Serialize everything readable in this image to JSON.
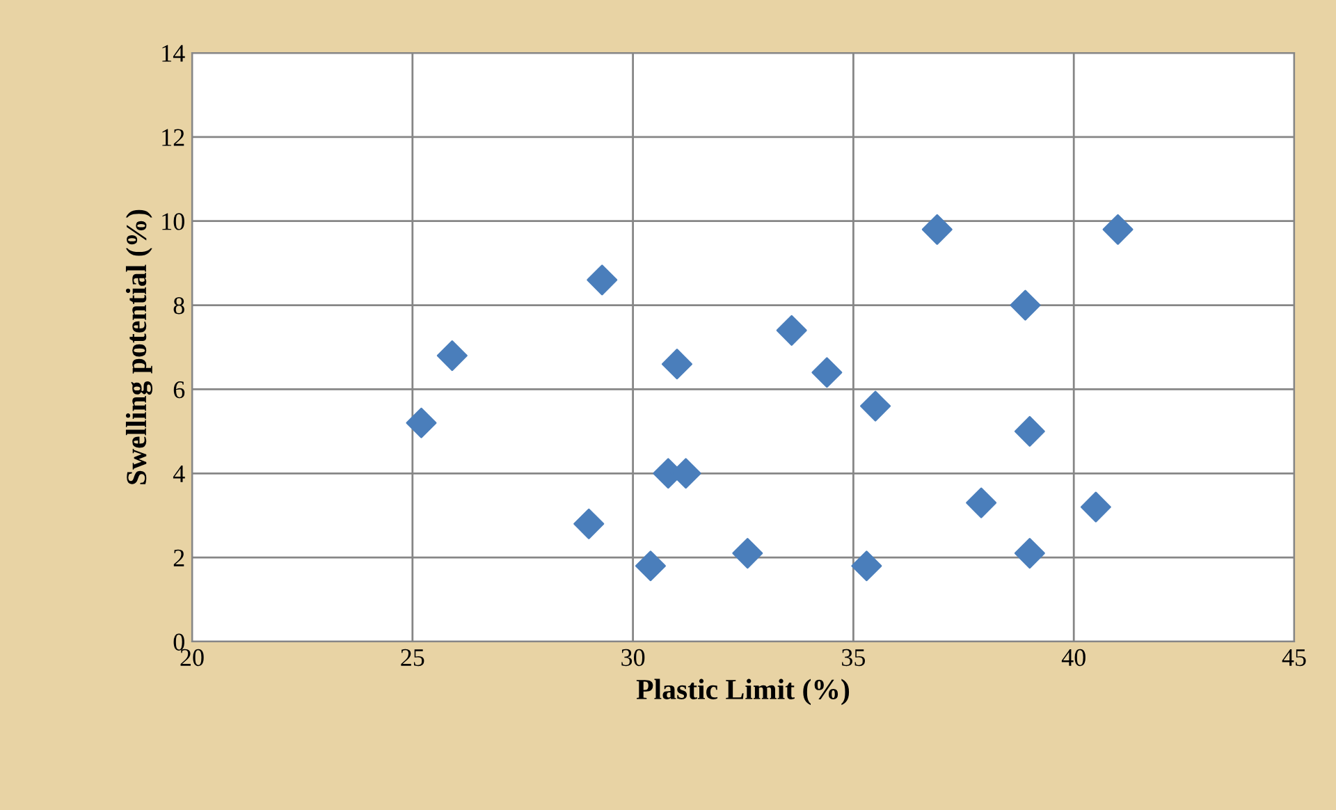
{
  "chart_data": {
    "type": "scatter",
    "xlabel": "Plastic Limit (%)",
    "ylabel": "Swelling potential (%)",
    "x": [
      25.2,
      25.9,
      29.0,
      29.3,
      30.4,
      30.8,
      31.0,
      31.2,
      32.6,
      33.6,
      34.4,
      35.5,
      35.3,
      36.9,
      37.9,
      38.9,
      39.0,
      39.0,
      40.5,
      41.0
    ],
    "series": [
      {
        "color": "#4a7ebb",
        "values": [
          5.2,
          6.8,
          2.8,
          8.6,
          1.8,
          4.0,
          6.6,
          4.0,
          2.1,
          7.4,
          6.4,
          5.6,
          1.8,
          9.8,
          3.3,
          8.0,
          5.0,
          2.1,
          3.2,
          9.8
        ]
      }
    ],
    "xlim": [
      20,
      45
    ],
    "xticks": [
      20,
      25,
      30,
      35,
      40,
      45
    ],
    "ylim": [
      0,
      14
    ],
    "yticks": [
      0,
      2,
      4,
      6,
      8,
      10,
      12,
      14
    ],
    "grid": true,
    "marker": "diamond"
  }
}
